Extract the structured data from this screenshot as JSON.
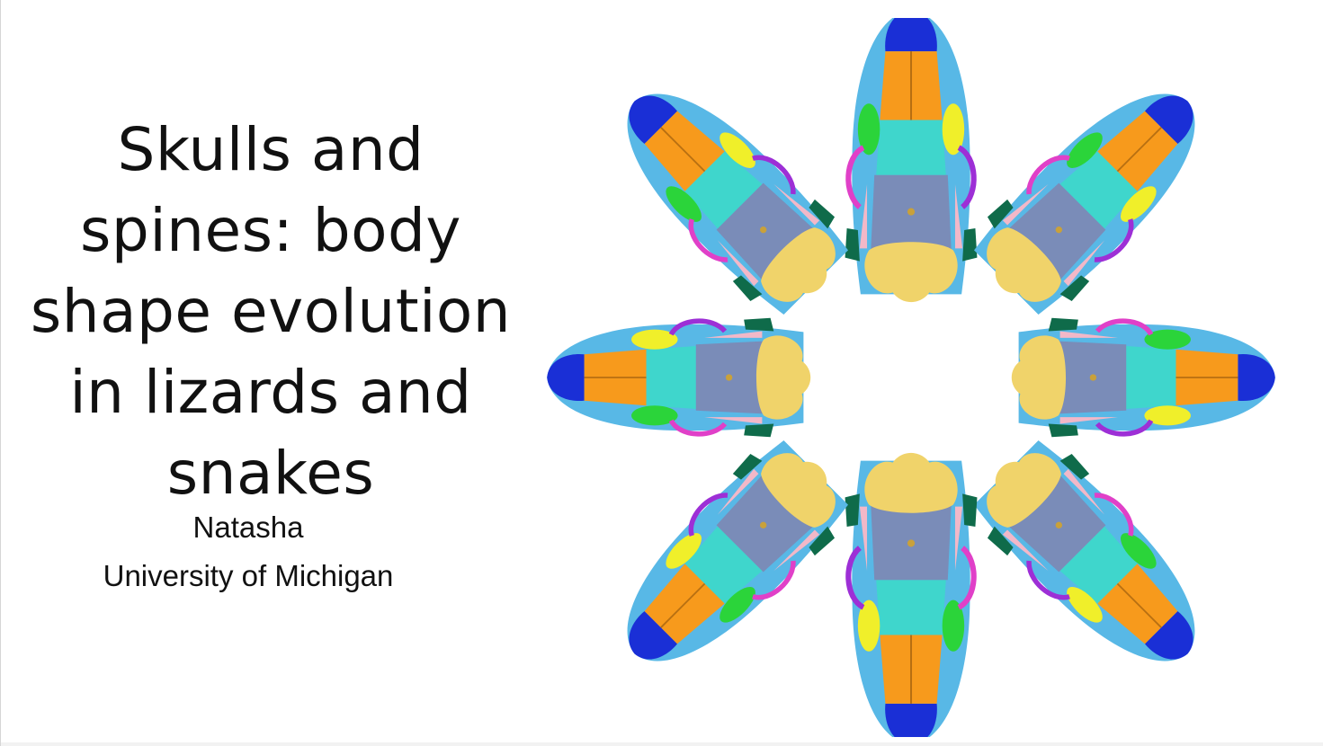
{
  "slide": {
    "title": "Skulls and\nspines: body\nshape evolution\nin lizards and\nsnakes",
    "author": "Natasha",
    "affiliation": "University of Michigan"
  },
  "figure": {
    "description_icon": "skull-illustration",
    "palette": {
      "premaxilla": "#1a2fd6",
      "maxilla": "#58b8e6",
      "nasal": "#f79a1c",
      "frontal": "#3fd6cc",
      "parietal": "#7a8cb8",
      "braincase": "#f0d36a",
      "quadrate": "#0f6b4a",
      "jugal": "#f0ef2a",
      "prefrontal": "#2bd43a",
      "postorbital": "#9d2fd6",
      "orbit_ring": "#e040c8",
      "pterygoid": "#f2b8c8"
    }
  }
}
